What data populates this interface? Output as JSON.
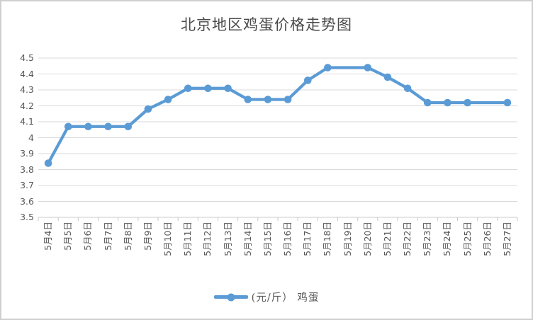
{
  "window": {
    "background": "#ffffff",
    "border_color": "#cfcfcf"
  },
  "chart_data": {
    "type": "line",
    "title": "北京地区鸡蛋价格走势图",
    "categories": [
      "5月4日",
      "5月5日",
      "5月6日",
      "5月7日",
      "5月8日",
      "5月9日",
      "5月10日",
      "5月11日",
      "5月12日",
      "5月13日",
      "5月14日",
      "5月15日",
      "5月16日",
      "5月17日",
      "5月18日",
      "5月19日",
      "5月20日",
      "5月21日",
      "5月22日",
      "5月23日",
      "5月24日",
      "5月25日",
      "5月26日",
      "5月27日"
    ],
    "series": [
      {
        "name": "(元/斤） 鸡蛋",
        "color": "#5b9bd5",
        "values": [
          3.84,
          4.07,
          4.07,
          4.07,
          4.07,
          4.18,
          4.24,
          4.31,
          4.31,
          4.31,
          4.24,
          4.24,
          4.24,
          4.36,
          4.44,
          4.44,
          4.44,
          4.38,
          4.31,
          4.22,
          4.22,
          4.22,
          4.22,
          4.22
        ],
        "marker_skip_indices": [
          15,
          22
        ]
      }
    ],
    "xlabel": "",
    "ylabel": "",
    "ylim": [
      3.5,
      4.5
    ],
    "ytick_step": 0.1,
    "ytick_labels": [
      "4.5",
      "4.4",
      "4.3",
      "4.2",
      "4.1",
      "4",
      "3.9",
      "3.8",
      "3.7",
      "3.6",
      "3.5"
    ],
    "grid": "horizontal",
    "gridline_color": "#d9d9d9",
    "axis_color": "#cccccc",
    "tick_color": "#c9c9c9",
    "label_color": "#595959",
    "title_color": "#4a4a4a",
    "legend_position": "bottom"
  }
}
